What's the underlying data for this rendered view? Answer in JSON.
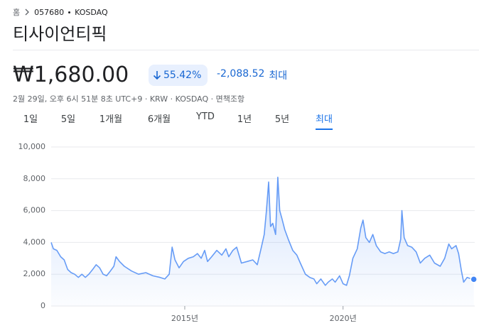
{
  "breadcrumb": {
    "home": "홈",
    "ticker": "057680",
    "exchange": "KOSDAQ"
  },
  "title": "티사이언티픽",
  "price": "₩1,680.00",
  "change_percent": "55.42%",
  "change": "-2,088.52",
  "period": "최대",
  "info": "2월 29일, 오후 6시 51분 8초 UTC+9 · KRW · KOSDAQ · 면책조항",
  "tabs": [
    "1일",
    "5일",
    "1개월",
    "6개월",
    "YTD",
    "1년",
    "5년",
    "최대"
  ],
  "selected_tab": 7,
  "chart_data": {
    "type": "area",
    "color": "#4285f4",
    "grid": true,
    "x": [
      2010.78,
      2010.85,
      2010.96,
      2011.08,
      2011.19,
      2011.3,
      2011.41,
      2011.52,
      2011.64,
      2011.75,
      2011.86,
      2011.97,
      2012.09,
      2012.2,
      2012.31,
      2012.42,
      2012.53,
      2012.65,
      2012.76,
      2012.83,
      2012.94,
      2013.09,
      2013.32,
      2013.54,
      2013.77,
      2013.99,
      2014.22,
      2014.37,
      2014.51,
      2014.6,
      2014.69,
      2014.82,
      2014.96,
      2015.11,
      2015.27,
      2015.4,
      2015.52,
      2015.63,
      2015.72,
      2015.85,
      2016.01,
      2016.17,
      2016.3,
      2016.39,
      2016.52,
      2016.64,
      2016.79,
      2016.97,
      2017.15,
      2017.29,
      2017.42,
      2017.51,
      2017.58,
      2017.65,
      2017.71,
      2017.78,
      2017.87,
      2017.94,
      2018.0,
      2018.07,
      2018.16,
      2018.27,
      2018.41,
      2018.54,
      2018.65,
      2018.81,
      2018.95,
      2019.08,
      2019.17,
      2019.3,
      2019.44,
      2019.53,
      2019.66,
      2019.75,
      2019.89,
      2020.0,
      2020.11,
      2020.2,
      2020.31,
      2020.45,
      2020.56,
      2020.63,
      2020.72,
      2020.83,
      2020.94,
      2021.05,
      2021.19,
      2021.32,
      2021.46,
      2021.59,
      2021.73,
      2021.82,
      2021.86,
      2021.93,
      2022.04,
      2022.17,
      2022.31,
      2022.44,
      2022.58,
      2022.74,
      2022.89,
      2023.07,
      2023.21,
      2023.34,
      2023.43,
      2023.57,
      2023.65,
      2023.74,
      2023.81,
      2023.92,
      2024.06,
      2024.13
    ],
    "values": [
      4000,
      3600,
      3500,
      3100,
      2900,
      2300,
      2100,
      2000,
      1800,
      2000,
      1800,
      2000,
      2300,
      2600,
      2400,
      2000,
      1900,
      2200,
      2500,
      3100,
      2800,
      2500,
      2200,
      2000,
      2100,
      1900,
      1800,
      1700,
      2000,
      3700,
      2900,
      2400,
      2800,
      3000,
      3100,
      3300,
      3000,
      3500,
      2800,
      3100,
      3500,
      3200,
      3600,
      3100,
      3500,
      3700,
      2700,
      2800,
      2900,
      2600,
      3700,
      4500,
      6000,
      7800,
      5000,
      5200,
      4500,
      8100,
      6000,
      5500,
      4800,
      4200,
      3500,
      3200,
      2700,
      2000,
      1800,
      1700,
      1400,
      1700,
      1300,
      1500,
      1700,
      1500,
      1900,
      1400,
      1300,
      1900,
      3000,
      3600,
      4900,
      5400,
      4300,
      4000,
      4500,
      3800,
      3400,
      3300,
      3400,
      3300,
      3400,
      4200,
      6000,
      4300,
      3800,
      3700,
      3400,
      2700,
      3000,
      3200,
      2700,
      2500,
      3000,
      3900,
      3600,
      3800,
      3300,
      2200,
      1500,
      1800,
      1700,
      1680
    ],
    "xlim": [
      2010.78,
      2024.16
    ],
    "xticks": [
      {
        "value": 2015,
        "label": "2015년"
      },
      {
        "value": 2020,
        "label": "2020년"
      }
    ],
    "ylim": [
      0,
      10000
    ],
    "yticks": [
      0,
      {
        "value": 2000,
        "label": "2,000"
      },
      {
        "value": 4000,
        "label": "4,000"
      },
      {
        "value": 6000,
        "label": "6,000"
      },
      {
        "value": 8000,
        "label": "8,000"
      },
      {
        "value": 10000,
        "label": "10,000"
      }
    ]
  }
}
